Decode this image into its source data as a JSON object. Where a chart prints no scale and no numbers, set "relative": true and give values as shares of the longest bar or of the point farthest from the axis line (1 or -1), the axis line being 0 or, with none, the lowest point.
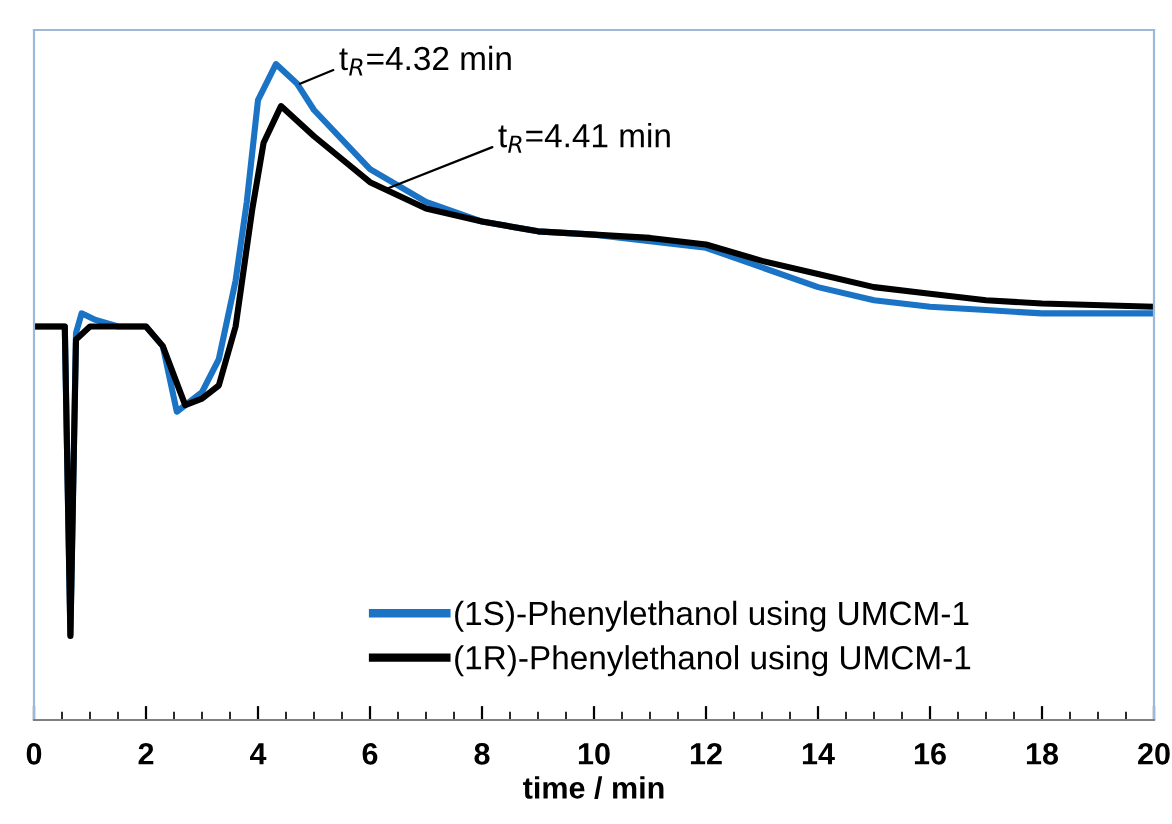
{
  "chart_data": {
    "type": "line",
    "xlabel": "time / min",
    "relative": true,
    "xlim": [
      0,
      20
    ],
    "xticks": [
      0,
      2,
      4,
      6,
      8,
      10,
      12,
      14,
      16,
      18,
      20
    ],
    "grid": false,
    "legend": "bottom",
    "marker": "none",
    "line_style": "solid",
    "tick_labels": "x",
    "annotations": [
      {
        "text": "t$_{R}$=4.32 min",
        "x": 4.75,
        "y": 0.97
      },
      {
        "text": "t$_{R}$=4.41 min",
        "x": 6.3,
        "y": 0.81
      }
    ],
    "series": [
      {
        "name": "(1S)-Phenylethanol using UMCM-1",
        "color": "#1a73c4",
        "x": [
          0,
          0.55,
          0.65,
          0.75,
          0.85,
          1.1,
          1.5,
          2.0,
          2.3,
          2.55,
          3.0,
          3.3,
          3.6,
          3.8,
          4.0,
          4.32,
          4.7,
          5,
          6,
          7,
          8,
          9,
          10,
          11,
          12,
          13,
          14,
          15,
          16,
          17,
          18,
          20
        ],
        "values": [
          0.6,
          0.6,
          0.13,
          0.59,
          0.62,
          0.61,
          0.6,
          0.6,
          0.57,
          0.47,
          0.5,
          0.55,
          0.67,
          0.79,
          0.945,
          1.0,
          0.97,
          0.93,
          0.84,
          0.79,
          0.76,
          0.745,
          0.74,
          0.73,
          0.72,
          0.69,
          0.66,
          0.64,
          0.63,
          0.625,
          0.62,
          0.62
        ]
      },
      {
        "name": "(1R)-Phenylethanol using UMCM-1",
        "color": "#000000",
        "x": [
          0,
          0.55,
          0.65,
          0.75,
          1.0,
          1.5,
          2.0,
          2.3,
          2.7,
          3.0,
          3.3,
          3.6,
          3.9,
          4.1,
          4.41,
          5,
          6,
          7,
          8,
          9,
          10,
          11,
          12,
          13,
          14,
          15,
          16,
          17,
          18,
          20
        ],
        "values": [
          0.6,
          0.6,
          0.128,
          0.58,
          0.6,
          0.6,
          0.6,
          0.57,
          0.48,
          0.49,
          0.51,
          0.6,
          0.78,
          0.88,
          0.936,
          0.89,
          0.82,
          0.78,
          0.76,
          0.745,
          0.74,
          0.735,
          0.725,
          0.7,
          0.68,
          0.66,
          0.65,
          0.64,
          0.635,
          0.63
        ]
      }
    ]
  }
}
